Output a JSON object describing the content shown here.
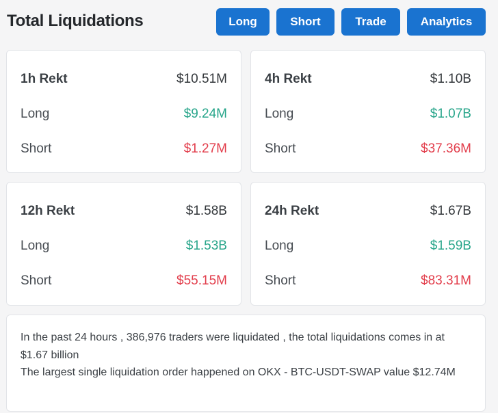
{
  "header": {
    "title": "Total Liquidations",
    "buttons": {
      "long": "Long",
      "short": "Short",
      "trade": "Trade",
      "analytics": "Analytics"
    }
  },
  "cards": [
    {
      "label": "1h Rekt",
      "total": "$10.51M",
      "long_label": "Long",
      "long": "$9.24M",
      "short_label": "Short",
      "short": "$1.27M"
    },
    {
      "label": "4h Rekt",
      "total": "$1.10B",
      "long_label": "Long",
      "long": "$1.07B",
      "short_label": "Short",
      "short": "$37.36M"
    },
    {
      "label": "12h Rekt",
      "total": "$1.58B",
      "long_label": "Long",
      "long": "$1.53B",
      "short_label": "Short",
      "short": "$55.15M"
    },
    {
      "label": "24h Rekt",
      "total": "$1.67B",
      "long_label": "Long",
      "long": "$1.59B",
      "short_label": "Short",
      "short": "$83.31M"
    }
  ],
  "summary": {
    "line1": "In the past 24 hours , 386,976 traders were liquidated , the total liquidations comes in at $1.67 billion",
    "line2": "The largest single liquidation order happened on OKX - BTC-USDT-SWAP value $12.74M"
  },
  "colors": {
    "button": "#1a73d0",
    "long": "#27a58a",
    "short": "#e23d4b"
  }
}
